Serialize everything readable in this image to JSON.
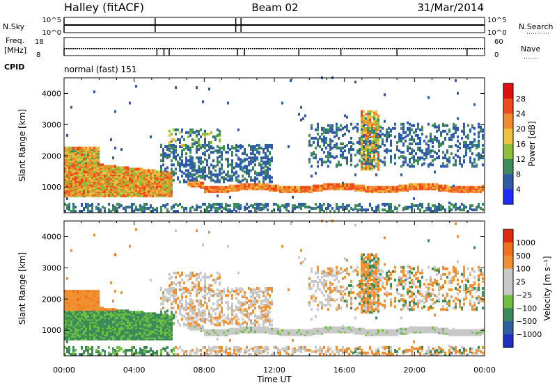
{
  "header": {
    "station": "Halley (fitACF)",
    "beam": "Beam 02",
    "date": "31/Mar/2014"
  },
  "strip_panels": {
    "nsky": {
      "left_label": "N.Sky",
      "left_ticks": [
        "10^5",
        "10^0"
      ],
      "right_ticks": [
        "10^5",
        "10^0"
      ],
      "right_label": "N.Search"
    },
    "freq": {
      "left_label_line1": "Freq.",
      "left_label_line2": "[MHz]",
      "left_ticks": [
        "18",
        "8"
      ],
      "right_ticks": [
        "60",
        "0"
      ],
      "right_label": "Nave"
    },
    "cpid": {
      "label": "CPID",
      "value": "normal (fast) 151"
    }
  },
  "chart_data": [
    {
      "type": "heatmap",
      "name": "power",
      "ylabel": "Slant Range [km]",
      "ylim": [
        180,
        4500
      ],
      "yticks": [
        1000,
        2000,
        3000,
        4000
      ],
      "xlim": [
        0,
        24
      ],
      "colorbar_label": "Power [dB]",
      "colorbar_ticks": [
        "4",
        "8",
        "12",
        "16",
        "20",
        "24",
        "28"
      ],
      "colors": [
        "#1f2bff",
        "#2e5aa8",
        "#3c8c5a",
        "#8fc03c",
        "#f0c040",
        "#f08a2c",
        "#f04a1c",
        "#e01010"
      ]
    },
    {
      "type": "heatmap",
      "name": "velocity",
      "ylabel": "Slant Range [km]",
      "ylim": [
        180,
        4500
      ],
      "yticks": [
        1000,
        2000,
        3000,
        4000
      ],
      "xlim": [
        0,
        24
      ],
      "xticks": [
        "00:00",
        "04:00",
        "08:00",
        "12:00",
        "16:00",
        "20:00",
        "00:00"
      ],
      "xlabel": "Time UT",
      "colorbar_label": "Velocity [m s⁻¹]",
      "colorbar_ticks": [
        "1000",
        "500",
        "100",
        "25",
        "−25",
        "−100",
        "−500",
        "−1000"
      ],
      "colors": [
        "#2030c0",
        "#2f5fa0",
        "#3a8a5a",
        "#70c040",
        "#c8c8c8",
        "#c8c8c8",
        "#f09030",
        "#f07020",
        "#e02a10"
      ]
    }
  ]
}
